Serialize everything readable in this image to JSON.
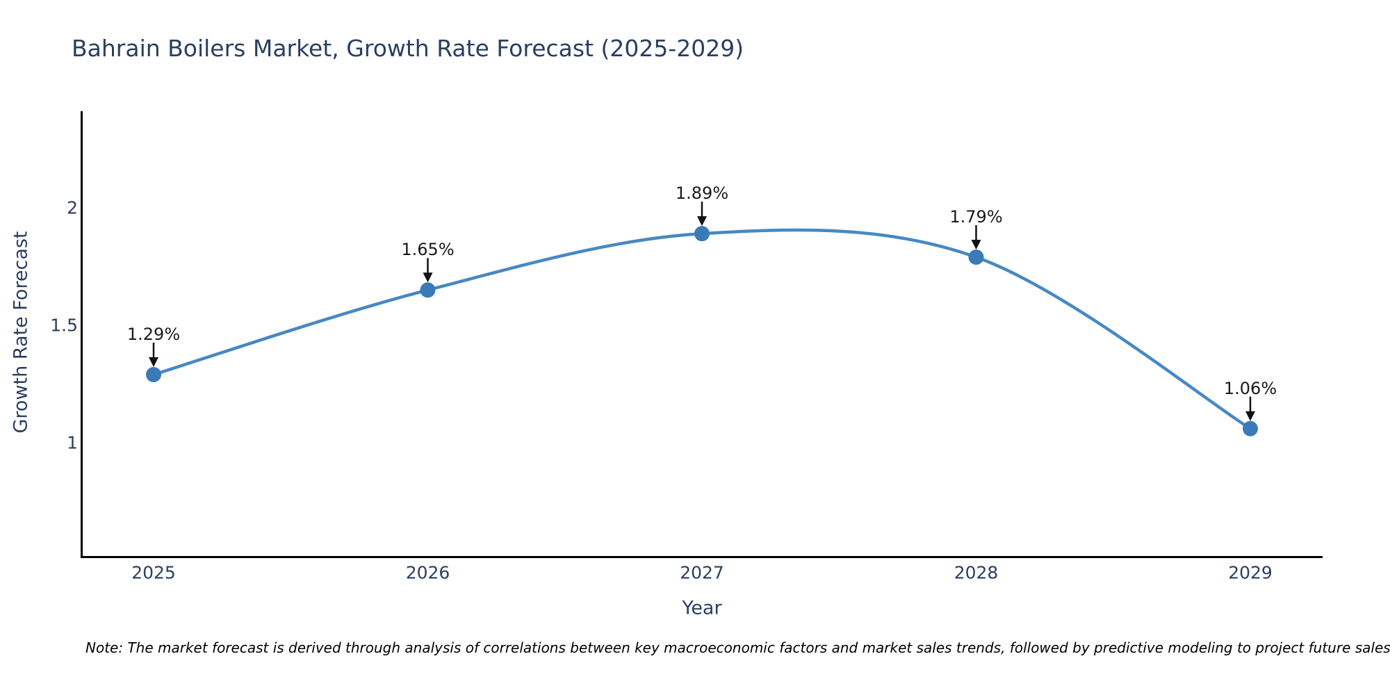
{
  "title": "Bahrain Boilers Market, Growth Rate Forecast (2025-2029)",
  "note": "Note: The market forecast is derived through analysis of correlations between key macroeconomic factors and market sales trends, followed by predictive modeling to project future sales",
  "chart_data": {
    "type": "line",
    "title": "Bahrain Boilers Market, Growth Rate Forecast (2025-2029)",
    "xlabel": "Year",
    "ylabel": "Growth Rate Forecast",
    "categories": [
      "2025",
      "2026",
      "2027",
      "2028",
      "2029"
    ],
    "values": [
      1.29,
      1.65,
      1.89,
      1.79,
      1.06
    ],
    "point_labels": [
      "1.29%",
      "1.65%",
      "1.89%",
      "1.79%",
      "1.06%"
    ],
    "yticks": [
      1,
      1.5,
      2
    ],
    "ytick_labels": [
      "1",
      "1.5",
      "2"
    ],
    "ylim": [
      0.52,
      2.41
    ],
    "line_style": "spline",
    "markers": true,
    "grid": false,
    "legend": false,
    "annotations": "value labels with black down arrows above each point",
    "colors": {
      "line": "#4688c3",
      "marker": "#3b7ab8",
      "annotation_text": "#1a1a1a",
      "arrow": "#111111",
      "axis": "#000000",
      "text": "#2a3f5f",
      "background": "#ffffff"
    }
  }
}
